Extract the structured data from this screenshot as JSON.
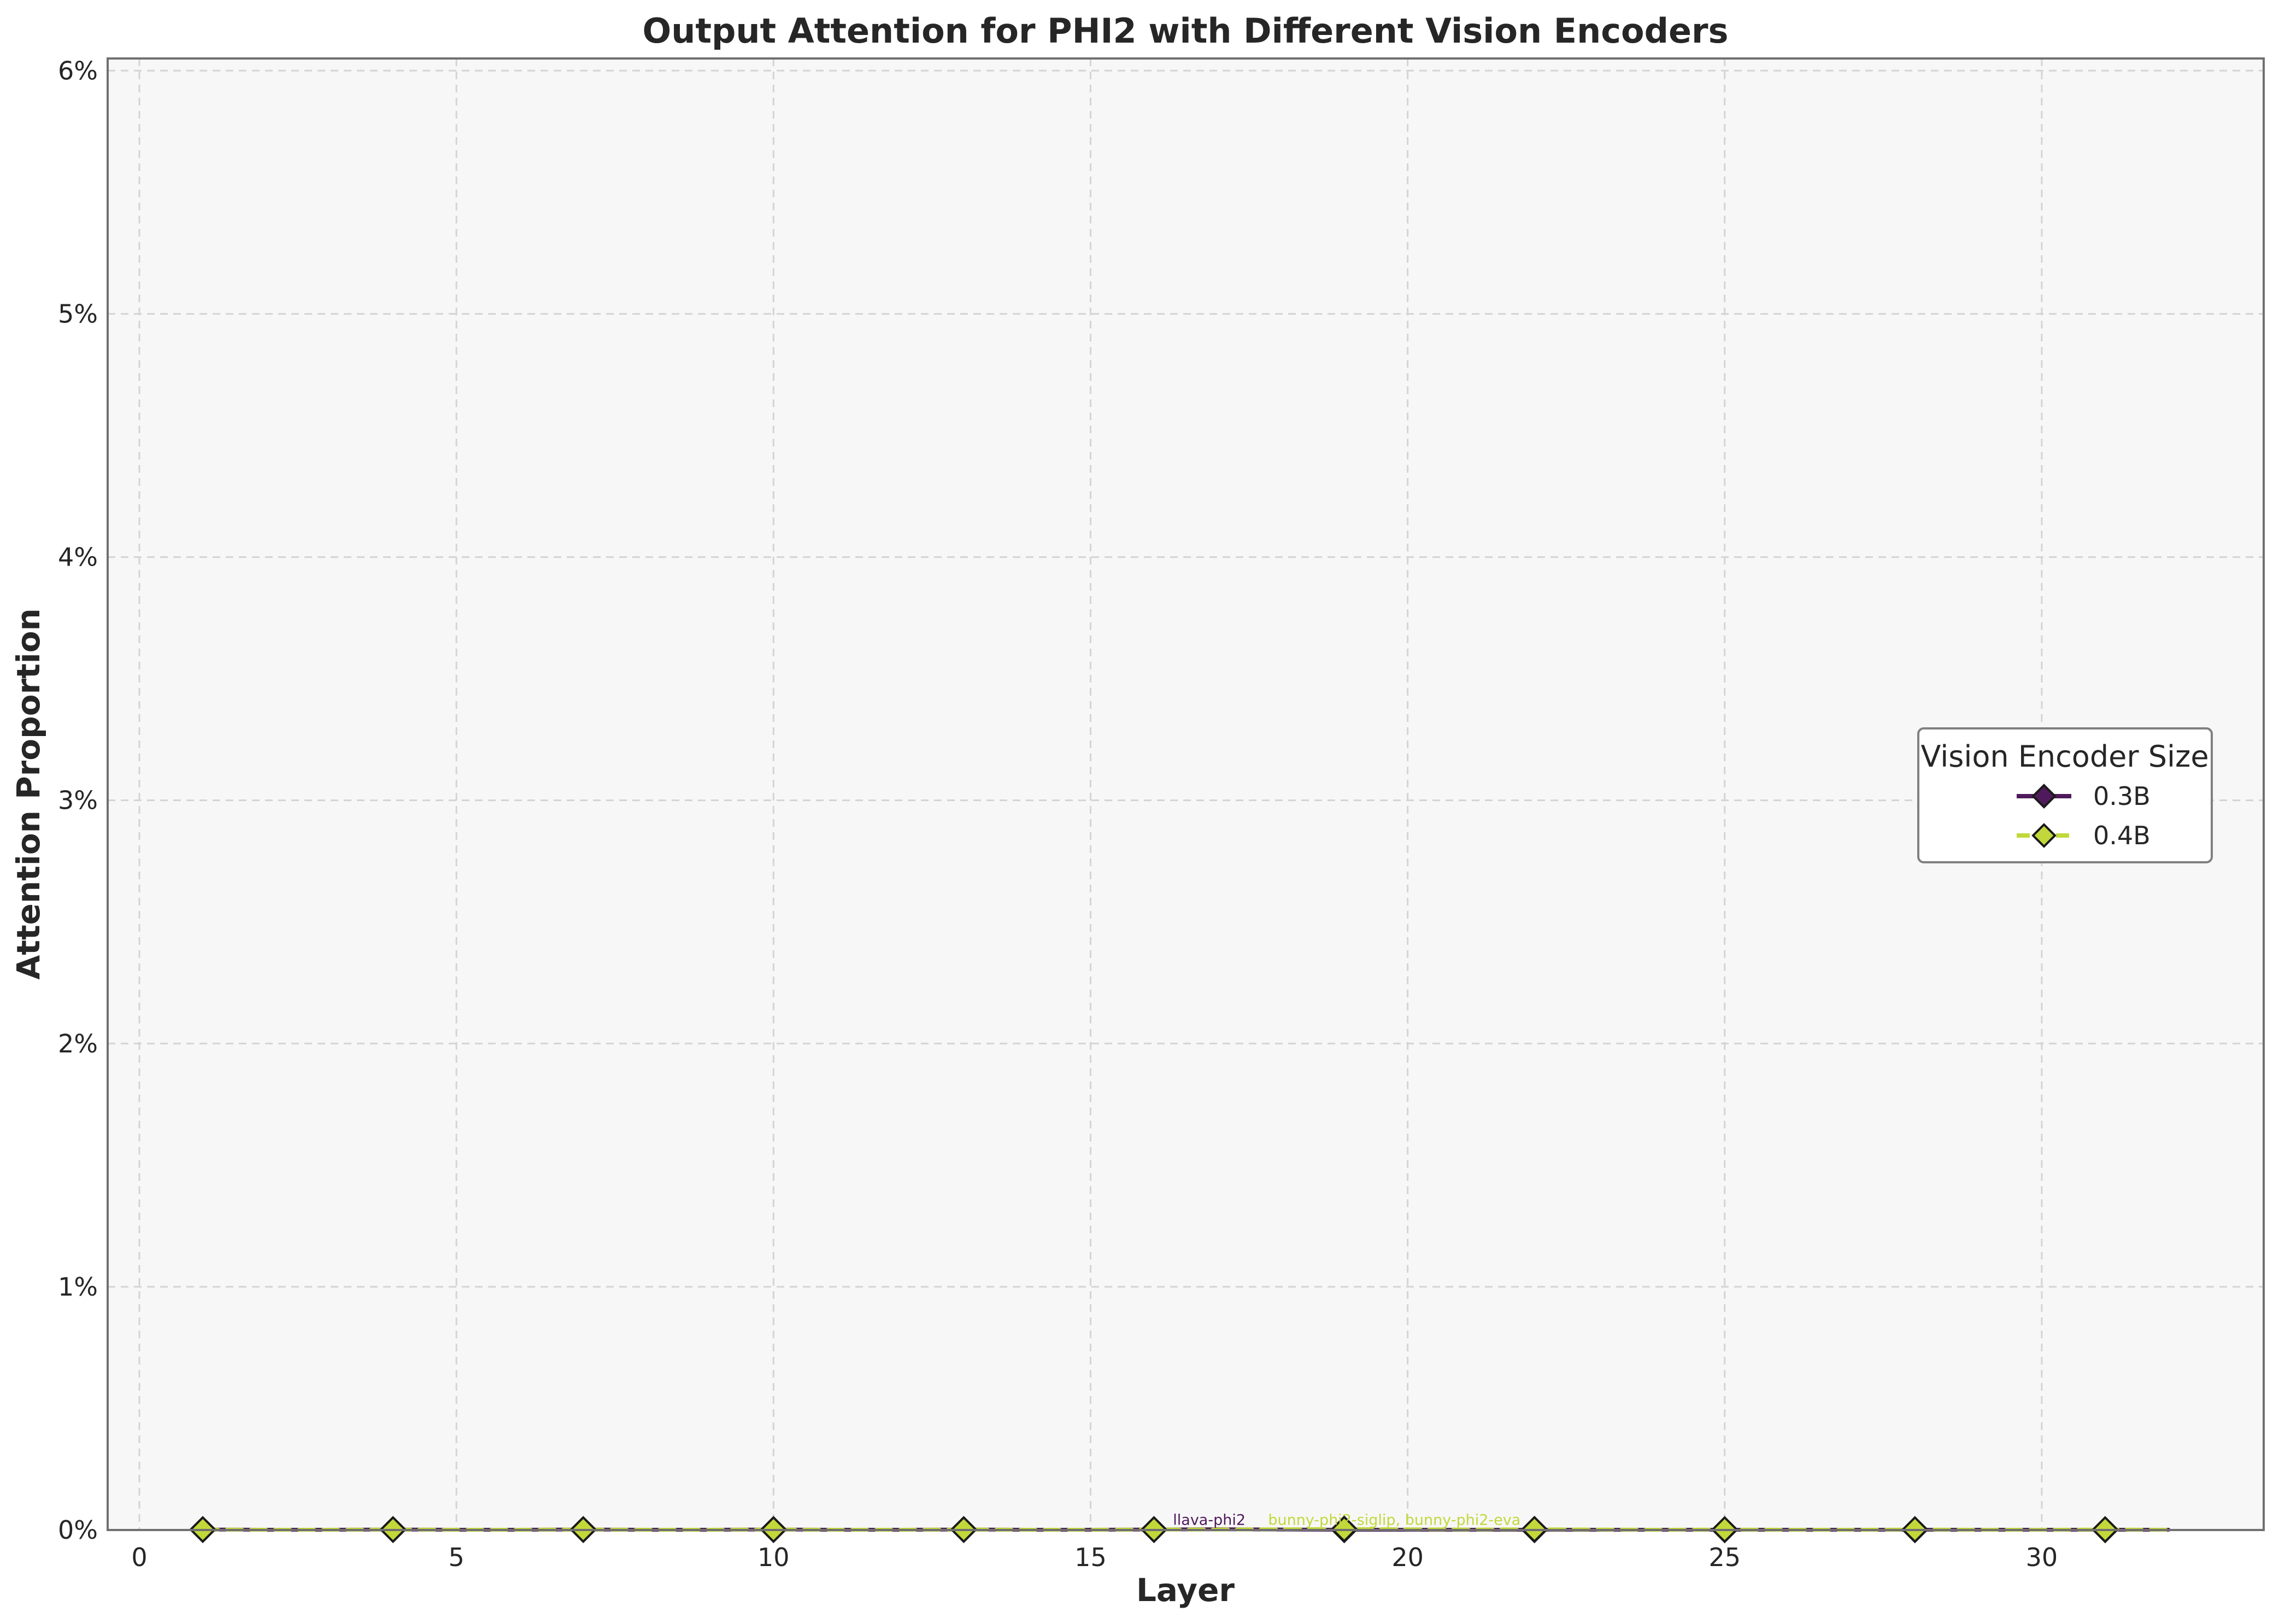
{
  "chart_data": {
    "type": "line",
    "title": "Output Attention for PHI2 with Different Vision Encoders",
    "xlabel": "Layer",
    "ylabel": "Attention Proportion",
    "xlim": [
      -0.5,
      33.5
    ],
    "ylim": [
      0,
      0.0605
    ],
    "x_ticks": [
      0,
      5,
      10,
      15,
      20,
      25,
      30
    ],
    "y_ticks": [
      0,
      0.01,
      0.02,
      0.03,
      0.04,
      0.05,
      0.06
    ],
    "y_tick_labels": [
      "0%",
      "1%",
      "2%",
      "3%",
      "4%",
      "5%",
      "6%"
    ],
    "grid": true,
    "legend": {
      "title": "Vision Encoder Size",
      "placement": "right"
    },
    "series": [
      {
        "name": "0.3B",
        "color": "#4f1a5b",
        "line_style": "solid",
        "marker": "diamond",
        "x": [
          1,
          2,
          3,
          4,
          5,
          6,
          7,
          8,
          9,
          10,
          11,
          12,
          13,
          14,
          15,
          16,
          17,
          18,
          19,
          20,
          21,
          22,
          23,
          24,
          25,
          26,
          27,
          28,
          29,
          30,
          31,
          32
        ],
        "values": [
          2e-05,
          1e-05,
          1e-05,
          2e-05,
          1e-05,
          1e-05,
          2e-05,
          1e-05,
          1e-05,
          2e-05,
          1e-05,
          1e-05,
          2e-05,
          1e-05,
          1e-05,
          2e-05,
          3e-05,
          2e-05,
          1e-05,
          1e-05,
          1e-05,
          1e-05,
          1e-05,
          1e-05,
          1e-05,
          1e-05,
          1e-05,
          1e-05,
          1e-05,
          1e-05,
          1e-05,
          1e-05
        ],
        "marker_x": [
          1,
          4,
          7,
          10,
          13,
          16,
          19,
          22,
          25,
          28,
          31
        ],
        "label_text": "llava-phi2",
        "label_x": 16.3,
        "label_y": 0.0003
      },
      {
        "name": "0.4B",
        "color": "#c2d83a",
        "line_style": "dashed",
        "marker": "diamond",
        "x": [
          1,
          2,
          3,
          4,
          5,
          6,
          7,
          8,
          9,
          10,
          11,
          12,
          13,
          14,
          15,
          16,
          17,
          18,
          19,
          20,
          21,
          22,
          23,
          24,
          25,
          26,
          27,
          28,
          29,
          30,
          31,
          32
        ],
        "values": [
          2e-05,
          1e-05,
          1e-05,
          2e-05,
          1e-05,
          1e-05,
          2e-05,
          1e-05,
          1e-05,
          2e-05,
          1e-05,
          1e-05,
          2e-05,
          1e-05,
          1e-05,
          2e-05,
          2e-05,
          3e-05,
          4e-05,
          3e-05,
          2e-05,
          3e-05,
          2e-05,
          1e-05,
          2e-05,
          1e-05,
          1e-05,
          2e-05,
          1e-05,
          1e-05,
          2e-05,
          1e-05
        ],
        "marker_x": [
          1,
          4,
          7,
          10,
          13,
          16,
          19,
          22,
          25,
          28,
          31
        ],
        "label_text": "bunny-phi2-siglip, bunny-phi2-eva",
        "label_x": 17.8,
        "label_y": 0.0003
      }
    ]
  }
}
